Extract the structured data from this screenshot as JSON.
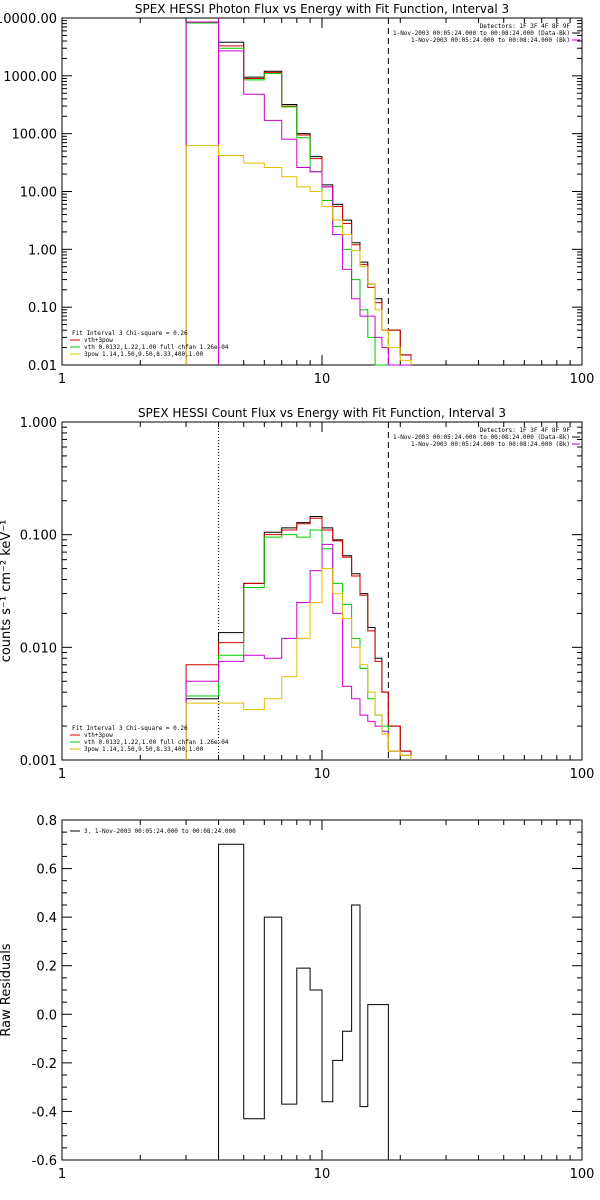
{
  "chart_data": [
    {
      "type": "line",
      "title": "SPEX HESSI Photon Flux vs Energy with Fit Function, Interval 3",
      "xscale": "log",
      "yscale": "log",
      "xlim": [
        1,
        100
      ],
      "ylim": [
        0.01,
        10000
      ],
      "xticks": [
        "1",
        "10",
        "100"
      ],
      "yticks": [
        "0.01",
        "0.10",
        "1.00",
        "10.00",
        "100.00",
        "1000.00",
        "10000.00"
      ],
      "info_lines": [
        "Detectors: 1F 3F 4F 8F 9F",
        "1-Nov-2003 00:05:24.000 to 00:08:24.000 (Data-Bk)",
        "1-Nov-2003 00:05:24.000 to 00:08:24.000 (Bk)"
      ],
      "legend_lines": [
        "Fit Interval 3   Chi-square = 0.26",
        "vth+3pow",
        "vth 0.0132,1.22,1.00  full chfan 1.26e-04",
        "3pow 1.14,1.50,9.50,8.33,400,1.00"
      ],
      "bin_edges": [
        3.0,
        4.0,
        5.0,
        6.0,
        7.0,
        8.0,
        9.0,
        10.0,
        11.0,
        12.0,
        13.0,
        14.0,
        15.0,
        16.0,
        17.0,
        18.0,
        20.0,
        22.0
      ],
      "series": [
        {
          "color": "#000000",
          "values": [
            8500,
            3800,
            950,
            1200,
            320,
            100,
            40,
            13,
            6,
            3.2,
            1.3,
            0.6,
            0.25,
            0.14,
            0.04,
            0.04,
            0.015
          ]
        },
        {
          "color": "#d40000",
          "values": [
            8500,
            3300,
            900,
            1150,
            300,
            95,
            37,
            12,
            5.5,
            2.8,
            1.2,
            0.55,
            0.22,
            0.12,
            0.04,
            0.04,
            0.015
          ]
        },
        {
          "color": "#00cc00",
          "values": [
            8200,
            3000,
            850,
            1100,
            290,
            85,
            22,
            7,
            2.5,
            1.0,
            0.3,
            0.09,
            0.03,
            0.01,
            0.009,
            0.009,
            0.009
          ]
        },
        {
          "color": "#cc00cc",
          "values": [
            8500,
            2700,
            480,
            170,
            80,
            26,
            22,
            12,
            1.8,
            0.45,
            0.14,
            0.07,
            0.07,
            0.03,
            0.02,
            0.009,
            0.009
          ]
        },
        {
          "color": "#e0c000",
          "values": [
            62,
            42,
            31,
            26,
            18,
            12,
            10,
            5.5,
            3.2,
            1.8,
            0.95,
            0.5,
            0.25,
            0.09,
            0.04,
            0.02,
            0.012
          ]
        }
      ],
      "markers": [
        {
          "x": 4.0,
          "style": "solid",
          "color": "#cc00cc"
        },
        {
          "x": 18.0,
          "style": "dashed",
          "color": "#000000"
        }
      ]
    },
    {
      "type": "line",
      "title": "SPEX HESSI Count Flux vs Energy with Fit Function, Interval 3",
      "ylabel": "counts s⁻¹ cm⁻² keV⁻¹",
      "xscale": "log",
      "yscale": "log",
      "xlim": [
        1,
        100
      ],
      "ylim": [
        0.001,
        1
      ],
      "xticks": [
        "1",
        "10",
        "100"
      ],
      "yticks": [
        "0.001",
        "0.010",
        "0.100",
        "1.000"
      ],
      "info_lines": [
        "Detectors: 1F 3F 4F 8F 9F",
        "1-Nov-2003 00:05:24.000 to 00:08:24.000 (Data-Bk)",
        "1-Nov-2003 00:05:24.000 to 00:08:24.000 (Bk)"
      ],
      "legend_lines": [
        "Fit Interval 3   Chi-square = 0.26",
        "vth+3pow",
        "vth 0.0132,1.22,1.00  full chfan 1.26e-04",
        "3pow 1.14,1.50,9.50,8.33,400,1.00"
      ],
      "bin_edges": [
        3.0,
        4.0,
        5.0,
        6.0,
        7.0,
        8.0,
        9.0,
        10.0,
        11.0,
        12.0,
        13.0,
        14.0,
        15.0,
        16.0,
        17.0,
        18.0,
        20.0,
        22.0
      ],
      "series": [
        {
          "color": "#000000",
          "values": [
            0.0035,
            0.0135,
            0.037,
            0.105,
            0.115,
            0.128,
            0.145,
            0.115,
            0.09,
            0.065,
            0.045,
            0.03,
            0.015,
            0.008,
            0.004,
            0.002,
            0.0012
          ]
        },
        {
          "color": "#d40000",
          "values": [
            0.007,
            0.011,
            0.037,
            0.1,
            0.11,
            0.125,
            0.14,
            0.11,
            0.088,
            0.063,
            0.043,
            0.029,
            0.014,
            0.0075,
            0.004,
            0.002,
            0.0012
          ]
        },
        {
          "color": "#00cc00",
          "values": [
            0.0037,
            0.0085,
            0.034,
            0.095,
            0.1,
            0.095,
            0.11,
            0.075,
            0.037,
            0.024,
            0.012,
            0.0065,
            0.0035,
            0.0025,
            0.002,
            0.0012,
            0.0011
          ]
        },
        {
          "color": "#cc00cc",
          "values": [
            0.005,
            0.0075,
            0.0085,
            0.008,
            0.012,
            0.025,
            0.048,
            0.082,
            0.02,
            0.0045,
            0.0035,
            0.0025,
            0.0022,
            0.002,
            0.0018,
            0.0012,
            0.0011
          ]
        },
        {
          "color": "#e0c000",
          "values": [
            0.0032,
            0.0032,
            0.0028,
            0.0035,
            0.0055,
            0.012,
            0.025,
            0.05,
            0.03,
            0.018,
            0.01,
            0.007,
            0.004,
            0.0025,
            0.0017,
            0.0012,
            0.0011
          ]
        }
      ],
      "markers": [
        {
          "x": 4.0,
          "style": "dotted",
          "color": "#000000"
        },
        {
          "x": 18.0,
          "style": "dashed",
          "color": "#000000"
        }
      ]
    },
    {
      "type": "line",
      "ylabel": "Raw Residuals",
      "xscale": "log",
      "yscale": "linear",
      "xlim": [
        1,
        100
      ],
      "ylim": [
        -0.6,
        0.8
      ],
      "xticks": [
        "1",
        "10",
        "100"
      ],
      "yticks": [
        "-0.6",
        "-0.4",
        "-0.2",
        "0.0",
        "0.2",
        "0.4",
        "0.6",
        "0.8"
      ],
      "legend_lines": [
        "3.  1-Nov-2003 00:05:24.000 to 00:08:24.000"
      ],
      "bin_edges": [
        4.0,
        5.0,
        6.0,
        7.0,
        8.0,
        9.0,
        10.0,
        11.0,
        12.0,
        13.0,
        14.0,
        15.0,
        16.0,
        18.0
      ],
      "series": [
        {
          "color": "#000000",
          "values": [
            0.7,
            -0.43,
            0.4,
            -0.37,
            0.19,
            0.1,
            -0.36,
            -0.19,
            -0.07,
            0.45,
            -0.38,
            0.04,
            0.04
          ]
        }
      ]
    }
  ]
}
